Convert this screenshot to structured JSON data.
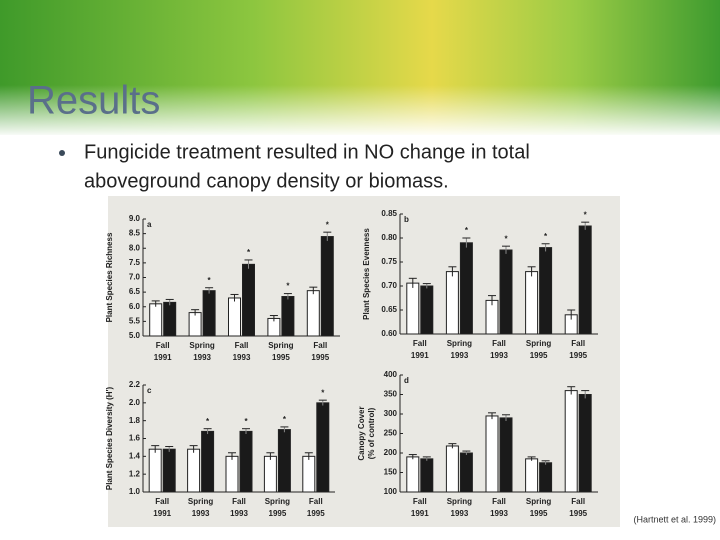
{
  "slide": {
    "title": "Results",
    "bullet": [
      "Fungicide treatment resulted in NO change in total",
      "aboveground canopy density or biomass."
    ],
    "citation": "(Hartnett et al. 1999)"
  },
  "chart_data": [
    {
      "type": "bar",
      "panel": "a",
      "ylabel": "Plant Species Richness",
      "categories": [
        [
          "Fall",
          "1991"
        ],
        [
          "Spring",
          "1993"
        ],
        [
          "Fall",
          "1993"
        ],
        [
          "Spring",
          "1995"
        ],
        [
          "Fall",
          "1995"
        ]
      ],
      "series": [
        {
          "color": "#ffffff",
          "values": [
            6.1,
            5.8,
            6.3,
            5.6,
            6.55
          ],
          "errors": [
            0.1,
            0.1,
            0.12,
            0.1,
            0.12
          ]
        },
        {
          "color": "#1a1a1a",
          "values": [
            6.15,
            6.55,
            7.45,
            6.35,
            8.4
          ],
          "errors": [
            0.1,
            0.1,
            0.15,
            0.1,
            0.15
          ],
          "significance": [
            null,
            "*",
            "*",
            "*",
            "*"
          ]
        }
      ],
      "ylim": [
        5.0,
        9.0
      ],
      "yticks": [
        {
          "value": 5,
          "label": "5.0"
        },
        {
          "value": 5.5,
          "label": "5.5"
        },
        {
          "value": 6,
          "label": "6.0"
        },
        {
          "value": 6.5,
          "label": "6.5"
        },
        {
          "value": 7,
          "label": "7.0"
        },
        {
          "value": 7.5,
          "label": "7.5"
        },
        {
          "value": 8,
          "label": "8.0"
        },
        {
          "value": 8.5,
          "label": "8.5"
        },
        {
          "value": 9,
          "label": "9.0"
        }
      ]
    },
    {
      "type": "bar",
      "panel": "b",
      "ylabel": "Plant Species Evenness",
      "categories": [
        [
          "Fall",
          "1991"
        ],
        [
          "Spring",
          "1993"
        ],
        [
          "Fall",
          "1993"
        ],
        [
          "Spring",
          "1995"
        ],
        [
          "Fall",
          "1995"
        ]
      ],
      "series": [
        {
          "color": "#ffffff",
          "values": [
            0.706,
            0.73,
            0.67,
            0.73,
            0.64
          ],
          "errors": [
            0.01,
            0.01,
            0.01,
            0.01,
            0.01
          ]
        },
        {
          "color": "#1a1a1a",
          "values": [
            0.7,
            0.79,
            0.775,
            0.78,
            0.825
          ],
          "errors": [
            0.005,
            0.01,
            0.008,
            0.008,
            0.008
          ],
          "significance": [
            null,
            "*",
            "*",
            "*",
            "*"
          ]
        }
      ],
      "ylim": [
        0.6,
        0.85
      ],
      "yticks": [
        {
          "value": 0.6,
          "label": "0.60"
        },
        {
          "value": 0.65,
          "label": "0.65"
        },
        {
          "value": 0.7,
          "label": "0.70"
        },
        {
          "value": 0.75,
          "label": "0.75"
        },
        {
          "value": 0.8,
          "label": "0.80"
        },
        {
          "value": 0.85,
          "label": "0.85"
        }
      ]
    },
    {
      "type": "bar",
      "panel": "c",
      "ylabel": "Plant Species Diversity (H')",
      "categories": [
        [
          "Fall",
          "1991"
        ],
        [
          "Spring",
          "1993"
        ],
        [
          "Fall",
          "1993"
        ],
        [
          "Spring",
          "1995"
        ],
        [
          "Fall",
          "1995"
        ]
      ],
      "series": [
        {
          "color": "#ffffff",
          "values": [
            1.48,
            1.48,
            1.4,
            1.4,
            1.4
          ],
          "errors": [
            0.04,
            0.04,
            0.04,
            0.04,
            0.04
          ]
        },
        {
          "color": "#1a1a1a",
          "values": [
            1.48,
            1.68,
            1.68,
            1.7,
            2.0
          ],
          "errors": [
            0.03,
            0.03,
            0.03,
            0.03,
            0.03
          ],
          "significance": [
            null,
            "*",
            "*",
            "*",
            "*"
          ]
        }
      ],
      "ylim": [
        1.0,
        2.2
      ],
      "yticks": [
        {
          "value": 1,
          "label": "1.0"
        },
        1.2,
        1.4,
        1.6,
        1.8,
        {
          "value": 2,
          "label": "2.0"
        },
        2.2
      ]
    },
    {
      "type": "bar",
      "panel": "d",
      "ylabel": [
        "Canopy Cover",
        "(% of control)"
      ],
      "categories": [
        [
          "Fall",
          "1991"
        ],
        [
          "Spring",
          "1993"
        ],
        [
          "Fall",
          "1993"
        ],
        [
          "Spring",
          "1995"
        ],
        [
          "Fall",
          "1995"
        ]
      ],
      "series": [
        {
          "color": "#ffffff",
          "values": [
            190,
            218,
            295,
            185,
            360
          ],
          "errors": [
            6,
            6,
            8,
            5,
            10
          ]
        },
        {
          "color": "#1a1a1a",
          "values": [
            185,
            200,
            290,
            175,
            350
          ],
          "errors": [
            5,
            5,
            8,
            5,
            10
          ]
        }
      ],
      "ylim": [
        100,
        400
      ],
      "yticks": [
        100,
        150,
        200,
        250,
        300,
        350,
        400
      ]
    }
  ]
}
